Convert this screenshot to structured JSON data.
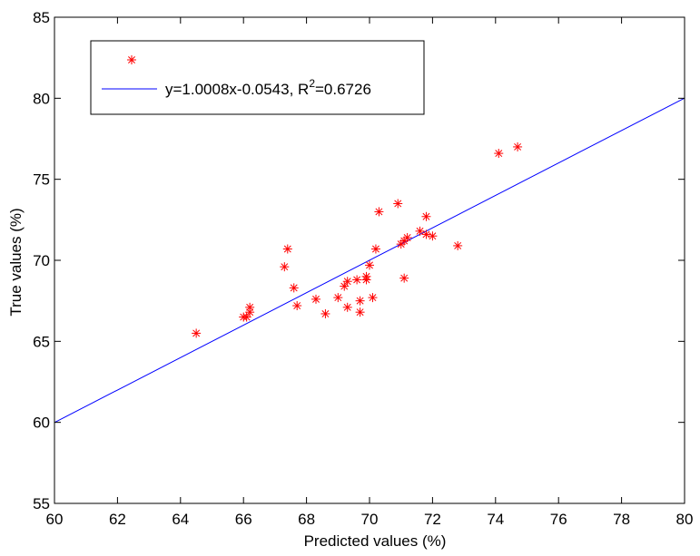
{
  "chart_data": {
    "type": "scatter",
    "title": "",
    "xlabel": "Predicted values (%)",
    "ylabel": "True values (%)",
    "xlim": [
      60,
      80
    ],
    "ylim": [
      55,
      85
    ],
    "xticks": [
      60,
      62,
      64,
      66,
      68,
      70,
      72,
      74,
      76,
      78,
      80
    ],
    "yticks": [
      55,
      60,
      65,
      70,
      75,
      80,
      85
    ],
    "grid": false,
    "legend_placement": "top-left",
    "series": [
      {
        "kind": "points",
        "marker": "asterisk",
        "color": "#ff0000",
        "points": [
          [
            64.5,
            65.5
          ],
          [
            66.0,
            66.5
          ],
          [
            66.1,
            66.5
          ],
          [
            66.2,
            66.8
          ],
          [
            66.2,
            67.1
          ],
          [
            67.3,
            69.6
          ],
          [
            67.4,
            70.7
          ],
          [
            67.6,
            68.3
          ],
          [
            67.7,
            67.2
          ],
          [
            68.3,
            67.6
          ],
          [
            68.6,
            66.7
          ],
          [
            69.0,
            67.7
          ],
          [
            69.2,
            68.4
          ],
          [
            69.3,
            68.7
          ],
          [
            69.3,
            67.1
          ],
          [
            69.6,
            68.8
          ],
          [
            69.7,
            67.5
          ],
          [
            69.7,
            66.8
          ],
          [
            69.9,
            68.8
          ],
          [
            69.9,
            69.0
          ],
          [
            70.0,
            69.7
          ],
          [
            70.1,
            67.7
          ],
          [
            70.2,
            70.7
          ],
          [
            70.3,
            73.0
          ],
          [
            70.9,
            73.5
          ],
          [
            71.0,
            71.0
          ],
          [
            71.1,
            68.9
          ],
          [
            71.1,
            71.2
          ],
          [
            71.2,
            71.4
          ],
          [
            71.6,
            71.8
          ],
          [
            71.8,
            72.7
          ],
          [
            71.8,
            71.6
          ],
          [
            72.0,
            71.5
          ],
          [
            72.8,
            70.9
          ],
          [
            74.1,
            76.6
          ],
          [
            74.7,
            77.0
          ]
        ]
      },
      {
        "kind": "fit-line",
        "name": "y=1.0008x-0.0543, R",
        "name_superscript": "2",
        "name_suffix": "=0.6726",
        "color": "#0000ff",
        "slope": 1.0008,
        "intercept": -0.0543,
        "x_range": [
          60,
          80
        ]
      }
    ]
  }
}
